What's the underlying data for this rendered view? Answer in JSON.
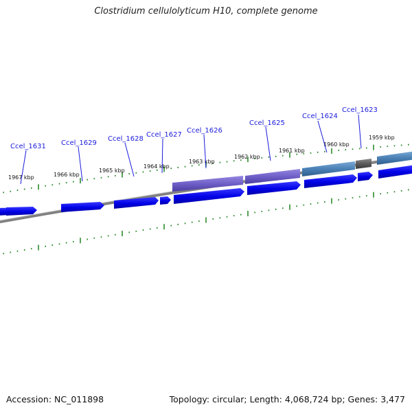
{
  "title": "Clostridium cellulolyticum H10, complete genome",
  "footer": {
    "accession": "Accession: NC_011898",
    "topology": "Topology: circular; Length: 4,068,724 bp; Genes: 3,477"
  },
  "colors": {
    "gene_forward": "#0000e6",
    "cds_purple": "#6f60c8",
    "cds_steelblue": "#4a80b4",
    "cds_gray": "#5a5a5a",
    "backbone": "#808080",
    "ticks": "#2a8a2a",
    "gene_label": "#1a1adc"
  },
  "genes": [
    {
      "id": "Ccel_1631"
    },
    {
      "id": "Ccel_1629"
    },
    {
      "id": "Ccel_1628"
    },
    {
      "id": "Ccel_1627"
    },
    {
      "id": "Ccel_1626"
    },
    {
      "id": "Ccel_1625"
    },
    {
      "id": "Ccel_1624"
    },
    {
      "id": "Ccel_1623"
    }
  ],
  "kbp_marks": [
    "1967 kbp",
    "1966 kbp",
    "1965 kbp",
    "1964 kbp",
    "1963 kbp",
    "1962 kbp",
    "1961 kbp",
    "1960 kbp",
    "1959 kbp"
  ]
}
